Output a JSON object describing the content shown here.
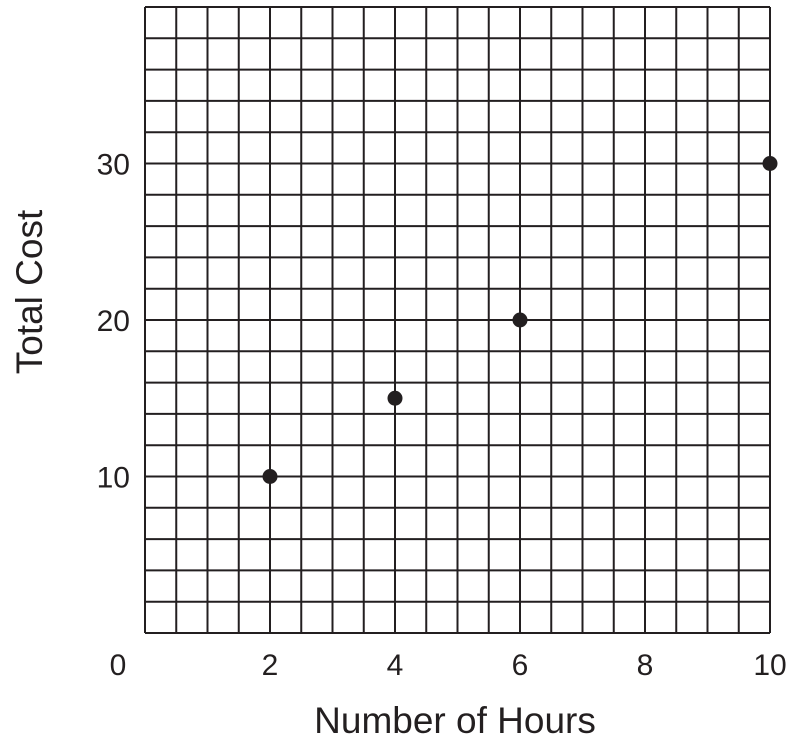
{
  "chart_data": {
    "type": "scatter",
    "xlabel": "Number of Hours",
    "ylabel": "Total Cost",
    "xlim": [
      0,
      10
    ],
    "ylim": [
      0,
      30
    ],
    "xticks": [
      "0",
      "2",
      "4",
      "6",
      "8",
      "10"
    ],
    "yticks": [
      "10",
      "20",
      "30"
    ],
    "grid": true,
    "points": [
      {
        "x": 2,
        "y": 10
      },
      {
        "x": 4,
        "y": 15
      },
      {
        "x": 6,
        "y": 20
      },
      {
        "x": 10,
        "y": 30
      }
    ],
    "colors": {
      "ink": "#231f20",
      "background": "#ffffff"
    }
  }
}
